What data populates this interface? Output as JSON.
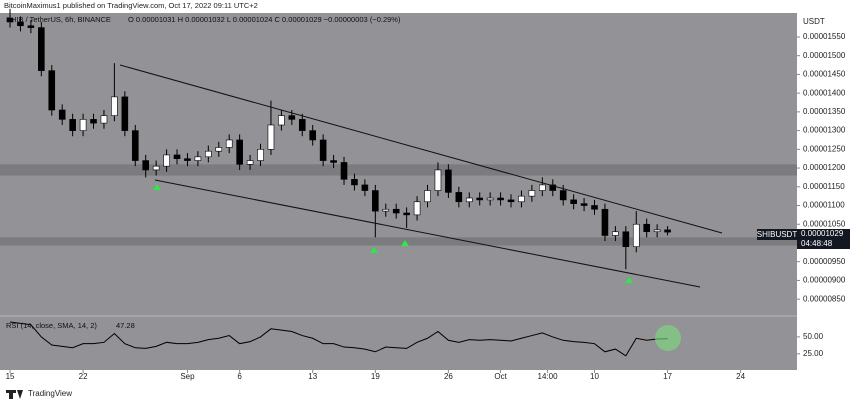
{
  "header": "BitcoinMaximus1 published on TradingView.com, Oct 17, 2022 09:11 UTC+2",
  "footer": "TradingView",
  "chart_data": [
    {
      "type": "candlestick",
      "title": "SHIB / TetherUS, 6h, BINANCE",
      "ohlc_text": "O 0.00001031  H 0.00001032  L 0.00001024  C 0.00001029  −0.00000003 (−0.29%)",
      "axis_unit": "USDT",
      "price_tag": {
        "symbol": "SHIBUSDT",
        "price": "0.00001029",
        "countdown": "04:48:48"
      },
      "x": [
        0,
        1,
        2,
        3,
        4,
        5,
        6,
        7,
        8,
        9,
        10,
        11,
        12,
        13,
        14,
        15,
        16,
        17,
        18,
        19,
        20,
        21,
        22,
        23,
        24,
        25,
        26,
        27,
        28,
        29,
        30,
        31,
        32,
        33,
        34,
        35,
        36,
        37,
        38,
        39,
        40,
        41,
        42,
        43,
        44,
        45,
        46,
        47,
        48,
        49,
        50,
        51,
        52,
        53,
        54,
        55,
        56,
        57,
        58,
        59,
        60,
        61,
        62,
        63
      ],
      "open": [
        1.6e-05,
        1.59e-05,
        1.58e-05,
        1.575e-05,
        1.46e-05,
        1.355e-05,
        1.33e-05,
        1.3e-05,
        1.33e-05,
        1.32e-05,
        1.34e-05,
        1.39e-05,
        1.3e-05,
        1.22e-05,
        1.195e-05,
        1.205e-05,
        1.235e-05,
        1.225e-05,
        1.22e-05,
        1.23e-05,
        1.245e-05,
        1.255e-05,
        1.275e-05,
        1.21e-05,
        1.22e-05,
        1.25e-05,
        1.315e-05,
        1.34e-05,
        1.33e-05,
        1.3e-05,
        1.275e-05,
        1.22e-05,
        1.215e-05,
        1.17e-05,
        1.155e-05,
        1.14e-05,
        1.085e-05,
        1.09e-05,
        1.08e-05,
        1.075e-05,
        1.11e-05,
        1.14e-05,
        1.195e-05,
        1.135e-05,
        1.11e-05,
        1.12e-05,
        1.115e-05,
        1.12e-05,
        1.115e-05,
        1.11e-05,
        1.125e-05,
        1.14e-05,
        1.155e-05,
        1.14e-05,
        1.115e-05,
        1.105e-05,
        1.1e-05,
        1.09e-05,
        1.02e-05,
        1.03e-05,
        9.9e-06,
        1.05e-05,
        1.03e-05,
        1.035e-05
      ],
      "high": [
        1.625e-05,
        1.605e-05,
        1.595e-05,
        1.59e-05,
        1.475e-05,
        1.37e-05,
        1.345e-05,
        1.345e-05,
        1.345e-05,
        1.355e-05,
        1.48e-05,
        1.405e-05,
        1.315e-05,
        1.235e-05,
        1.22e-05,
        1.25e-05,
        1.25e-05,
        1.24e-05,
        1.245e-05,
        1.26e-05,
        1.27e-05,
        1.29e-05,
        1.29e-05,
        1.235e-05,
        1.265e-05,
        1.38e-05,
        1.355e-05,
        1.355e-05,
        1.345e-05,
        1.315e-05,
        1.29e-05,
        1.235e-05,
        1.23e-05,
        1.185e-05,
        1.17e-05,
        1.155e-05,
        1.105e-05,
        1.105e-05,
        1.095e-05,
        1.125e-05,
        1.155e-05,
        1.215e-05,
        1.21e-05,
        1.15e-05,
        1.135e-05,
        1.135e-05,
        1.135e-05,
        1.135e-05,
        1.13e-05,
        1.14e-05,
        1.155e-05,
        1.175e-05,
        1.17e-05,
        1.155e-05,
        1.13e-05,
        1.12e-05,
        1.115e-05,
        1.105e-05,
        1.045e-05,
        1.045e-05,
        1.085e-05,
        1.065e-05,
        1.05e-05,
        1.045e-05
      ],
      "low": [
        1.575e-05,
        1.565e-05,
        1.56e-05,
        1.445e-05,
        1.34e-05,
        1.315e-05,
        1.285e-05,
        1.285e-05,
        1.305e-05,
        1.305e-05,
        1.325e-05,
        1.285e-05,
        1.205e-05,
        1.175e-05,
        1.18e-05,
        1.19e-05,
        1.21e-05,
        1.205e-05,
        1.205e-05,
        1.215e-05,
        1.23e-05,
        1.24e-05,
        1.195e-05,
        1.195e-05,
        1.205e-05,
        1.235e-05,
        1.3e-05,
        1.315e-05,
        1.285e-05,
        1.26e-05,
        1.205e-05,
        1.2e-05,
        1.155e-05,
        1.14e-05,
        1.125e-05,
        1.015e-05,
        1.07e-05,
        1.065e-05,
        1.04e-05,
        1.06e-05,
        1.095e-05,
        1.125e-05,
        1.12e-05,
        1.095e-05,
        1.095e-05,
        1.1e-05,
        1.1e-05,
        1.1e-05,
        1.095e-05,
        1.095e-05,
        1.11e-05,
        1.125e-05,
        1.125e-05,
        1.1e-05,
        1.09e-05,
        1.085e-05,
        1.075e-05,
        1.005e-05,
        1.005e-05,
        9.3e-06,
        9.75e-06,
        1.015e-05,
        1.015e-05,
        1.02e-05
      ],
      "close": [
        1.59e-05,
        1.58e-05,
        1.575e-05,
        1.46e-05,
        1.355e-05,
        1.33e-05,
        1.3e-05,
        1.33e-05,
        1.32e-05,
        1.34e-05,
        1.39e-05,
        1.3e-05,
        1.22e-05,
        1.195e-05,
        1.205e-05,
        1.235e-05,
        1.225e-05,
        1.22e-05,
        1.23e-05,
        1.245e-05,
        1.255e-05,
        1.275e-05,
        1.21e-05,
        1.22e-05,
        1.25e-05,
        1.315e-05,
        1.34e-05,
        1.33e-05,
        1.3e-05,
        1.275e-05,
        1.22e-05,
        1.215e-05,
        1.17e-05,
        1.155e-05,
        1.14e-05,
        1.085e-05,
        1.09e-05,
        1.08e-05,
        1.075e-05,
        1.11e-05,
        1.14e-05,
        1.195e-05,
        1.135e-05,
        1.11e-05,
        1.12e-05,
        1.115e-05,
        1.12e-05,
        1.115e-05,
        1.11e-05,
        1.125e-05,
        1.14e-05,
        1.155e-05,
        1.14e-05,
        1.115e-05,
        1.105e-05,
        1.1e-05,
        1.09e-05,
        1.02e-05,
        1.03e-05,
        9.9e-06,
        1.05e-05,
        1.03e-05,
        1.035e-05,
        1.029e-05
      ],
      "up_color": "#ffffff",
      "down_color": "#000000",
      "zones": [
        [
          1.18e-05,
          1.21e-05
        ],
        [
          9.93e-06,
          1.015e-05
        ]
      ],
      "xlim": [
        -0.96,
        75.4
      ],
      "xticks": [
        {
          "value": 0,
          "label": "15"
        },
        {
          "value": 7,
          "label": "22"
        },
        {
          "value": 17,
          "label": "Sep"
        },
        {
          "value": 22,
          "label": "6"
        },
        {
          "value": 29,
          "label": "13"
        },
        {
          "value": 35,
          "label": "19"
        },
        {
          "value": 42,
          "label": "26"
        },
        {
          "value": 47,
          "label": "Oct"
        },
        {
          "value": 51.5,
          "label": "14:00"
        },
        {
          "value": 56,
          "label": "10"
        },
        {
          "value": 63,
          "label": "17"
        },
        {
          "value": 70,
          "label": "24"
        }
      ],
      "ylim": [
        8.13e-06,
        1.614e-05
      ],
      "yticks": [
        {
          "value": 8.5e-06,
          "label": "0.00000850"
        },
        {
          "value": 9e-06,
          "label": "0.00000900"
        },
        {
          "value": 9.5e-06,
          "label": "0.00000950"
        },
        {
          "value": 1e-05,
          "label": "0.00001000"
        },
        {
          "value": 1.05e-05,
          "label": "0.00001050"
        },
        {
          "value": 1.1e-05,
          "label": "0.00001100"
        },
        {
          "value": 1.15e-05,
          "label": "0.00001150"
        },
        {
          "value": 1.2e-05,
          "label": "0.00001200"
        },
        {
          "value": 1.25e-05,
          "label": "0.00001250"
        },
        {
          "value": 1.3e-05,
          "label": "0.00001300"
        },
        {
          "value": 1.35e-05,
          "label": "0.00001350"
        },
        {
          "value": 1.4e-05,
          "label": "0.00001400"
        },
        {
          "value": 1.45e-05,
          "label": "0.00001450"
        },
        {
          "value": 1.5e-05,
          "label": "0.00001500"
        },
        {
          "value": 1.55e-05,
          "label": "0.00001550"
        }
      ]
    },
    {
      "type": "line",
      "title": "RSI (14, close, SMA, 14, 2)",
      "color": "#000000",
      "values": [
        72,
        70,
        68,
        50,
        38,
        36,
        34,
        40,
        40,
        42,
        55,
        40,
        34,
        33,
        36,
        42,
        40,
        40,
        42,
        46,
        48,
        52,
        40,
        43,
        50,
        62,
        60,
        58,
        52,
        48,
        40,
        40,
        35,
        34,
        32,
        28,
        35,
        34,
        33,
        42,
        48,
        58,
        45,
        42,
        46,
        45,
        46,
        45,
        44,
        48,
        52,
        56,
        50,
        45,
        43,
        42,
        40,
        28,
        32,
        22,
        48,
        45,
        47,
        47.28
      ],
      "ylim": [
        4,
        78
      ],
      "yticks": [
        {
          "value": 50,
          "label": "50.00"
        },
        {
          "value": 25,
          "label": "25.00"
        }
      ]
    }
  ]
}
